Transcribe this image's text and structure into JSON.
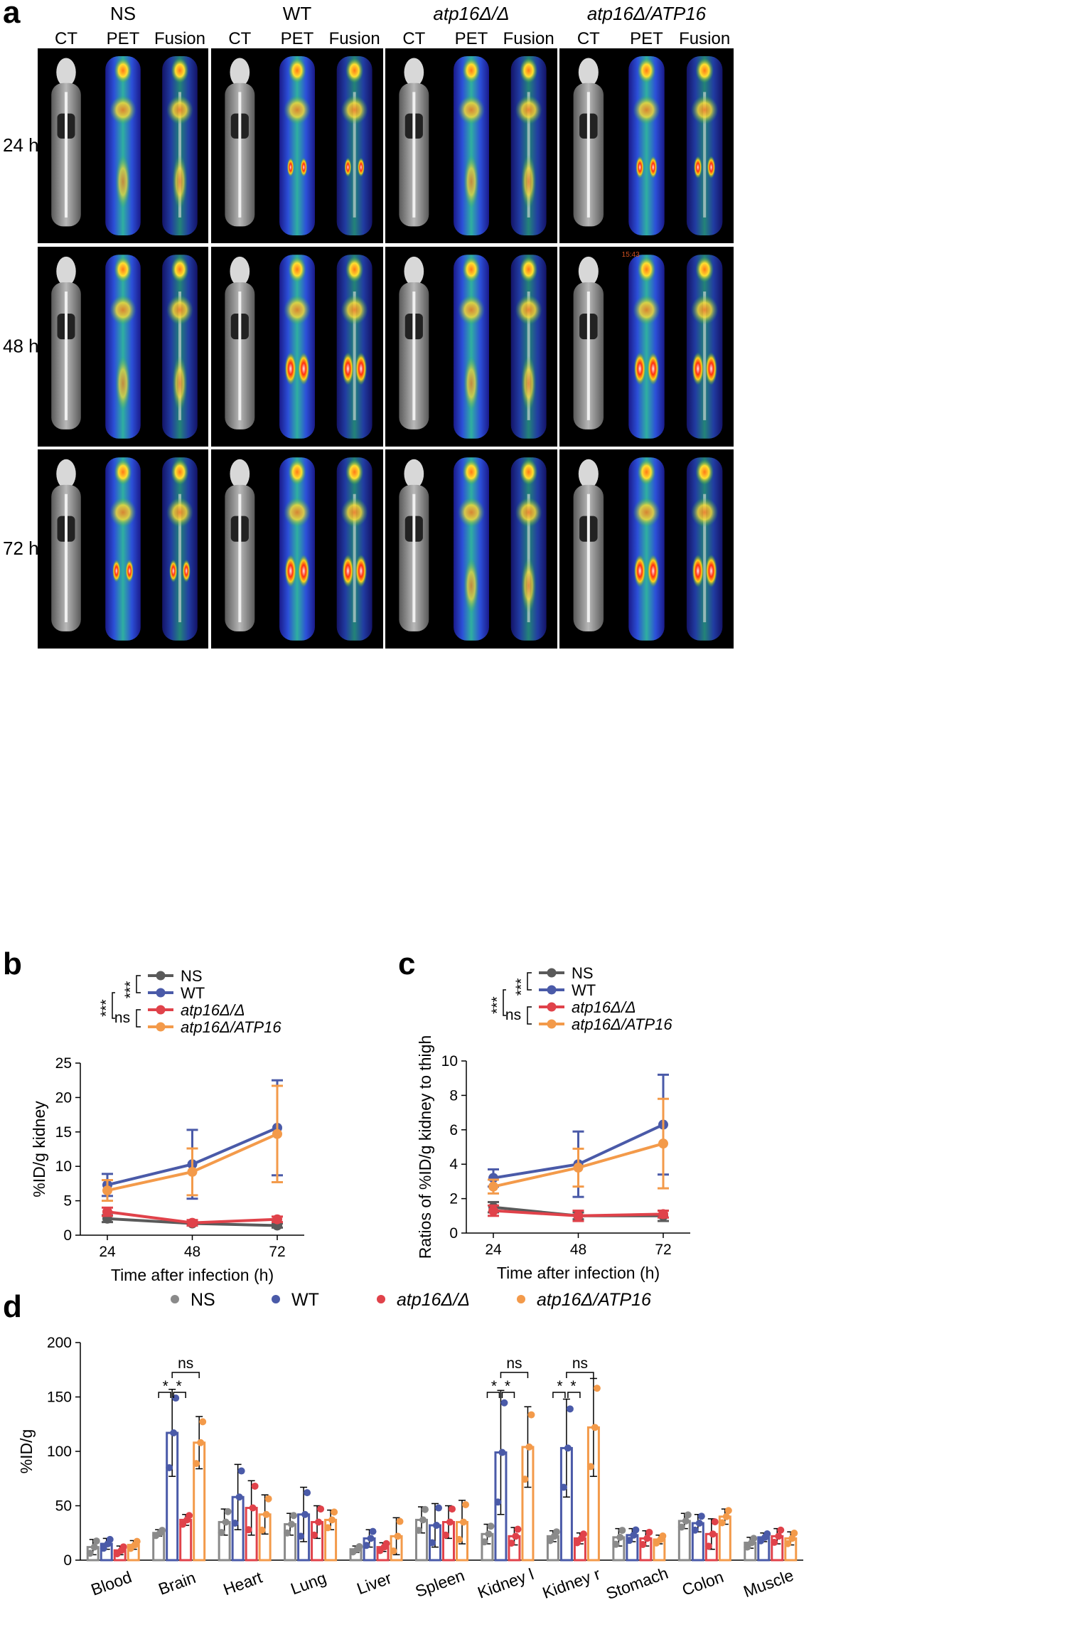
{
  "panel_a": {
    "letter": "a",
    "groups": [
      {
        "label": "NS",
        "italic": false
      },
      {
        "label": "WT",
        "italic": false
      },
      {
        "label": "atp16Δ/Δ",
        "italic": true
      },
      {
        "label": "atp16Δ/ATP16",
        "italic": true
      }
    ],
    "columns": [
      "CT",
      "PET",
      "Fusion"
    ],
    "rows": [
      "24 h",
      "48 h",
      "72 h"
    ],
    "timestamp": "15:43"
  },
  "legend": {
    "items": [
      {
        "label": "NS",
        "color": "#5a5a5a",
        "italic": false
      },
      {
        "label": "WT",
        "color": "#4a5aa8",
        "italic": false
      },
      {
        "label": "atp16Δ/Δ",
        "color": "#e0424a",
        "italic": true
      },
      {
        "label": "atp16Δ/ATP16",
        "color": "#f39a4a",
        "italic": true
      }
    ],
    "brackets": [
      "***",
      "***",
      "ns"
    ]
  },
  "chart_data": [
    {
      "id": "b",
      "type": "line",
      "letter": "b",
      "xlabel": "Time after infection (h)",
      "ylabel": "%ID/g kidney",
      "x": [
        24,
        48,
        72
      ],
      "ylim": [
        0,
        25
      ],
      "yticks": [
        0,
        5,
        10,
        15,
        20,
        25
      ],
      "series": [
        {
          "name": "NS",
          "color": "#5a5a5a",
          "values": [
            2.4,
            1.7,
            1.4
          ],
          "err": [
            0.5,
            0.3,
            0.3
          ]
        },
        {
          "name": "WT",
          "color": "#4a5aa8",
          "values": [
            7.3,
            10.3,
            15.6
          ],
          "err": [
            1.6,
            5.0,
            6.9
          ]
        },
        {
          "name": "atp16Δ/Δ",
          "color": "#e0424a",
          "values": [
            3.4,
            1.8,
            2.3
          ],
          "err": [
            0.6,
            0.4,
            0.4
          ]
        },
        {
          "name": "atp16Δ/ATP16",
          "color": "#f39a4a",
          "values": [
            6.5,
            9.2,
            14.7
          ],
          "err": [
            1.5,
            3.4,
            7.0
          ]
        }
      ]
    },
    {
      "id": "c",
      "type": "line",
      "letter": "c",
      "xlabel": "Time after infection (h)",
      "ylabel": "Ratios of %ID/g kidney to thigh",
      "x": [
        24,
        48,
        72
      ],
      "ylim": [
        0,
        10
      ],
      "yticks": [
        0,
        2,
        4,
        6,
        8,
        10
      ],
      "series": [
        {
          "name": "NS",
          "color": "#5a5a5a",
          "values": [
            1.5,
            1.0,
            1.0
          ],
          "err": [
            0.3,
            0.2,
            0.3
          ]
        },
        {
          "name": "WT",
          "color": "#4a5aa8",
          "values": [
            3.2,
            4.0,
            6.3
          ],
          "err": [
            0.5,
            1.9,
            2.9
          ]
        },
        {
          "name": "atp16Δ/Δ",
          "color": "#e0424a",
          "values": [
            1.3,
            1.0,
            1.1
          ],
          "err": [
            0.3,
            0.3,
            0.2
          ]
        },
        {
          "name": "atp16Δ/ATP16",
          "color": "#f39a4a",
          "values": [
            2.7,
            3.8,
            5.2
          ],
          "err": [
            0.4,
            1.1,
            2.6
          ]
        }
      ]
    },
    {
      "id": "d",
      "type": "bar",
      "letter": "d",
      "ylabel": "%ID/g",
      "ylim": [
        0,
        200
      ],
      "yticks": [
        0,
        50,
        100,
        150,
        200
      ],
      "categories": [
        "Blood",
        "Brain",
        "Heart",
        "Lung",
        "Liver",
        "Spleen",
        "Kidney l",
        "Kidney r",
        "Stomach",
        "Colon",
        "Muscle"
      ],
      "series": [
        {
          "name": "NS",
          "color": "#8a8a8a",
          "values": [
            12,
            25,
            35,
            33,
            10,
            37,
            24,
            22,
            21,
            36,
            16
          ],
          "err": [
            7,
            3,
            12,
            10,
            3,
            12,
            9,
            5,
            8,
            7,
            5
          ]
        },
        {
          "name": "WT",
          "color": "#4a5aa8",
          "values": [
            15,
            117,
            58,
            42,
            20,
            32,
            99,
            103,
            23,
            34,
            21
          ],
          "err": [
            5,
            40,
            30,
            25,
            8,
            20,
            57,
            45,
            6,
            8,
            4
          ]
        },
        {
          "name": "atp16Δ/Δ",
          "color": "#e0424a",
          "values": [
            9,
            37,
            48,
            35,
            12,
            35,
            22,
            20,
            20,
            24,
            22
          ],
          "err": [
            4,
            5,
            25,
            15,
            4,
            15,
            8,
            5,
            7,
            14,
            7
          ]
        },
        {
          "name": "atp16Δ/ATP16",
          "color": "#f39a4a",
          "values": [
            14,
            108,
            42,
            37,
            22,
            35,
            104,
            122,
            19,
            40,
            20
          ],
          "err": [
            4,
            24,
            18,
            9,
            17,
            20,
            37,
            45,
            4,
            7,
            6
          ]
        }
      ],
      "significance": [
        {
          "category": "Brain",
          "labels": [
            "*",
            "*",
            "ns"
          ]
        },
        {
          "category": "Kidney l",
          "labels": [
            "*",
            "*",
            "ns"
          ]
        },
        {
          "category": "Kidney r",
          "labels": [
            "*",
            "*",
            "ns"
          ]
        }
      ]
    }
  ]
}
